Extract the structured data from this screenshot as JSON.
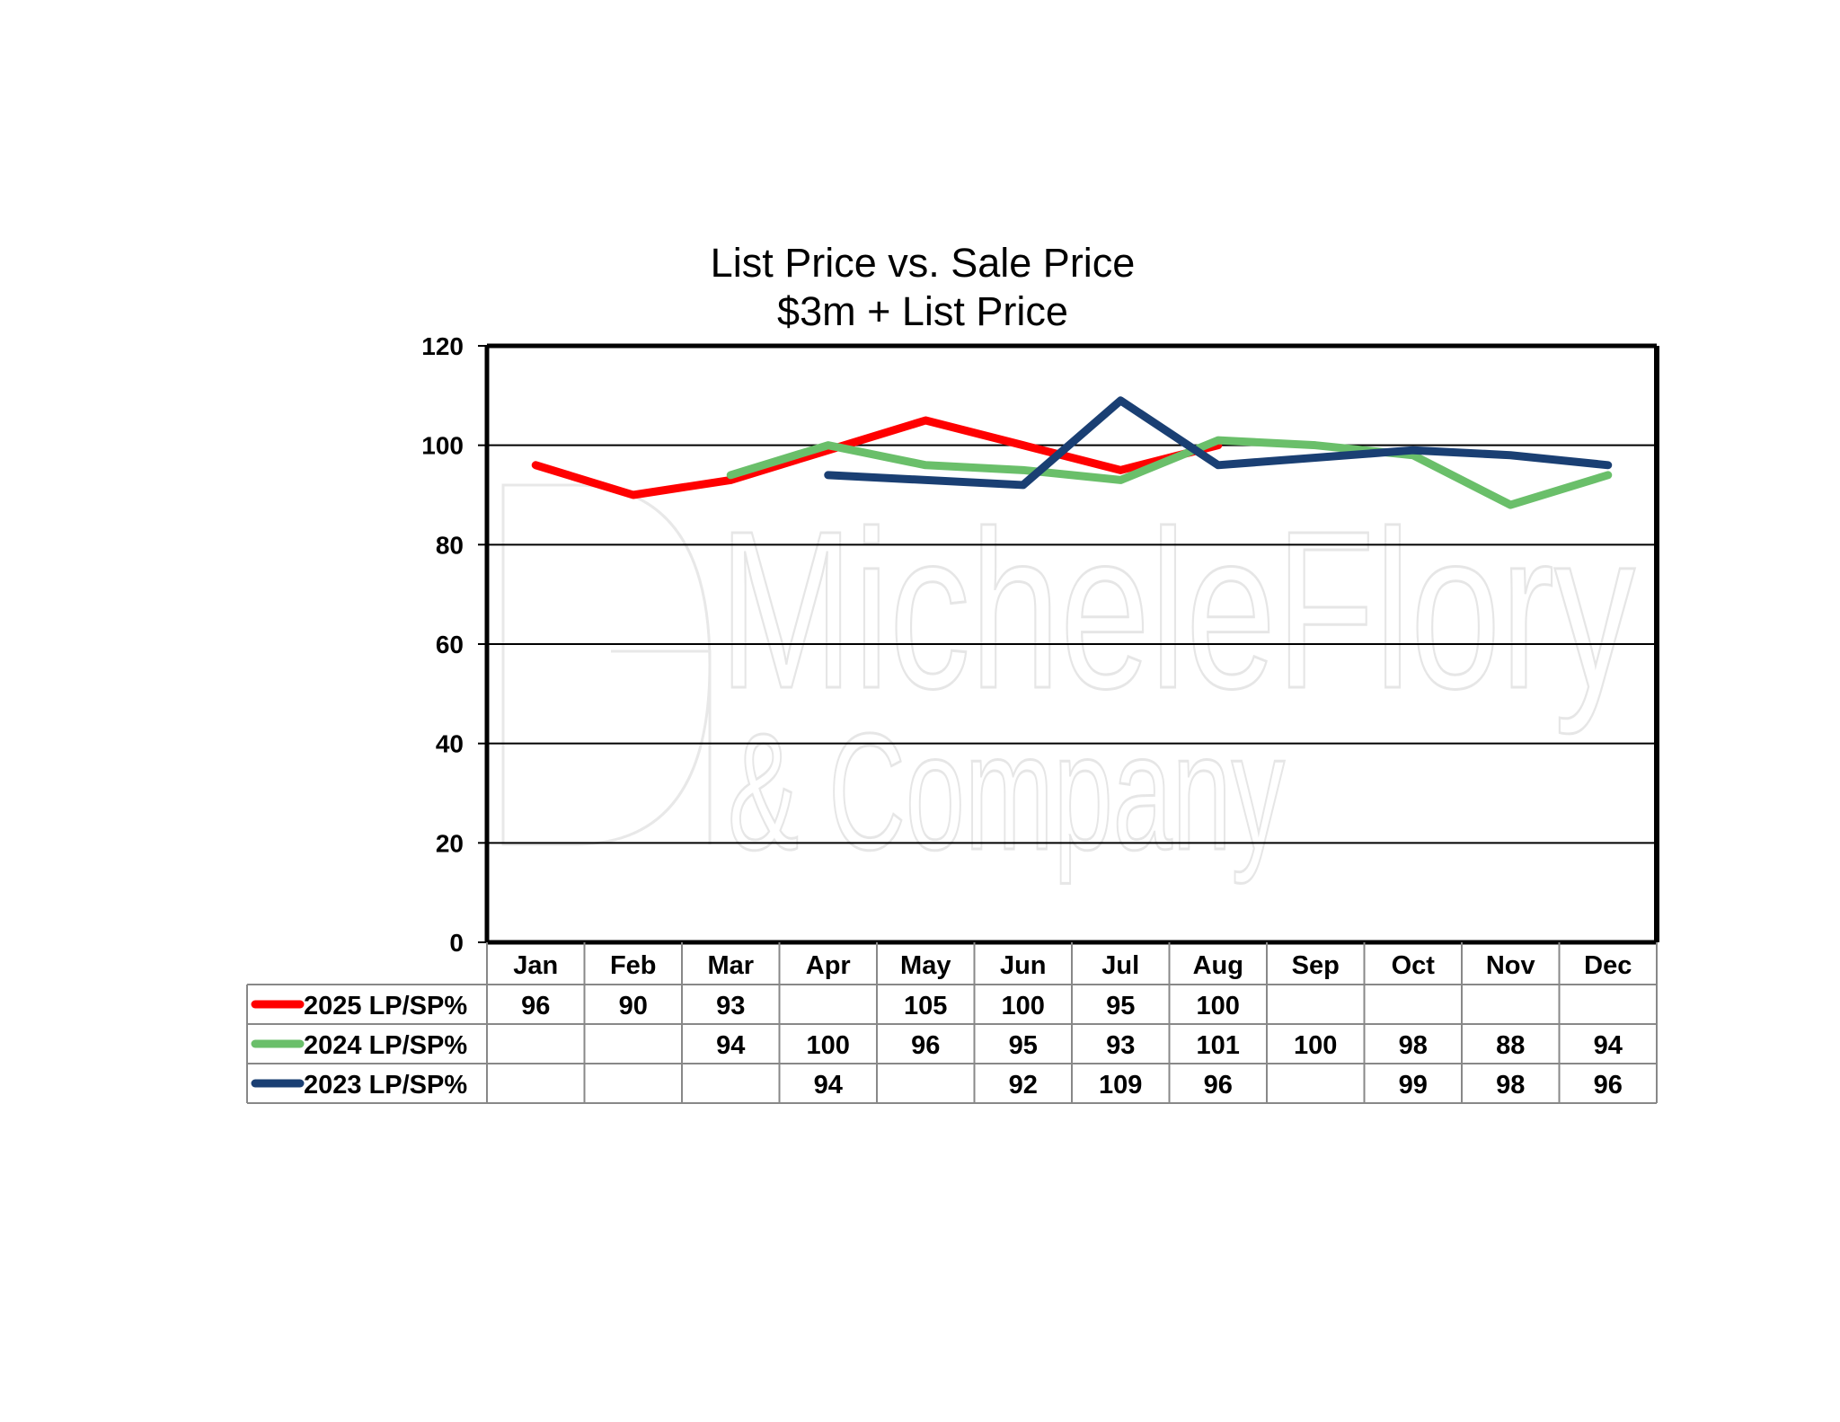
{
  "watermark": {
    "line1": "MicheleFlory",
    "line2": "& Company"
  },
  "chart_data": {
    "type": "line",
    "title": [
      "List Price vs. Sale Price",
      "$3m + List Price"
    ],
    "categories": [
      "Jan",
      "Feb",
      "Mar",
      "Apr",
      "May",
      "Jun",
      "Jul",
      "Aug",
      "Sep",
      "Oct",
      "Nov",
      "Dec"
    ],
    "ylim": [
      0,
      120
    ],
    "yticks": [
      0,
      20,
      40,
      60,
      80,
      100,
      120
    ],
    "grid": true,
    "legend": "data-table-left",
    "series": [
      {
        "name": "2025 LP/SP%",
        "color": "#ff0000",
        "values": [
          96,
          90,
          93,
          null,
          105,
          100,
          95,
          100,
          null,
          null,
          null,
          null
        ]
      },
      {
        "name": "2024 LP/SP%",
        "color": "#6abf6a",
        "values": [
          null,
          null,
          94,
          100,
          96,
          95,
          93,
          101,
          100,
          98,
          88,
          94
        ]
      },
      {
        "name": "2023 LP/SP%",
        "color": "#1a3f73",
        "values": [
          null,
          null,
          null,
          94,
          null,
          92,
          109,
          96,
          null,
          99,
          98,
          96
        ]
      }
    ]
  }
}
